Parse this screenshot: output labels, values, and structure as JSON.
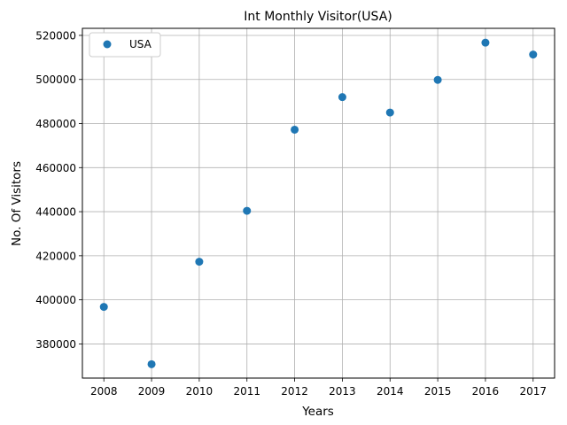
{
  "chart_data": {
    "type": "scatter",
    "title": "Int Monthly Visitor(USA)",
    "xlabel": "Years",
    "ylabel": "No. Of Visitors",
    "x": [
      2008,
      2009,
      2010,
      2011,
      2012,
      2013,
      2014,
      2015,
      2016,
      2017
    ],
    "series": [
      {
        "name": "USA",
        "color": "#1f77b4",
        "values": [
          396800,
          370800,
          417300,
          440400,
          477200,
          492000,
          485000,
          499800,
          516700,
          511300
        ]
      }
    ],
    "xlim": [
      2007.55,
      2017.45
    ],
    "ylim": [
      364500,
      523200
    ],
    "xticks": [
      2008,
      2009,
      2010,
      2011,
      2012,
      2013,
      2014,
      2015,
      2016,
      2017
    ],
    "yticks": [
      380000,
      400000,
      420000,
      440000,
      460000,
      480000,
      500000,
      520000
    ],
    "grid": true,
    "legend_position": "upper-left"
  }
}
